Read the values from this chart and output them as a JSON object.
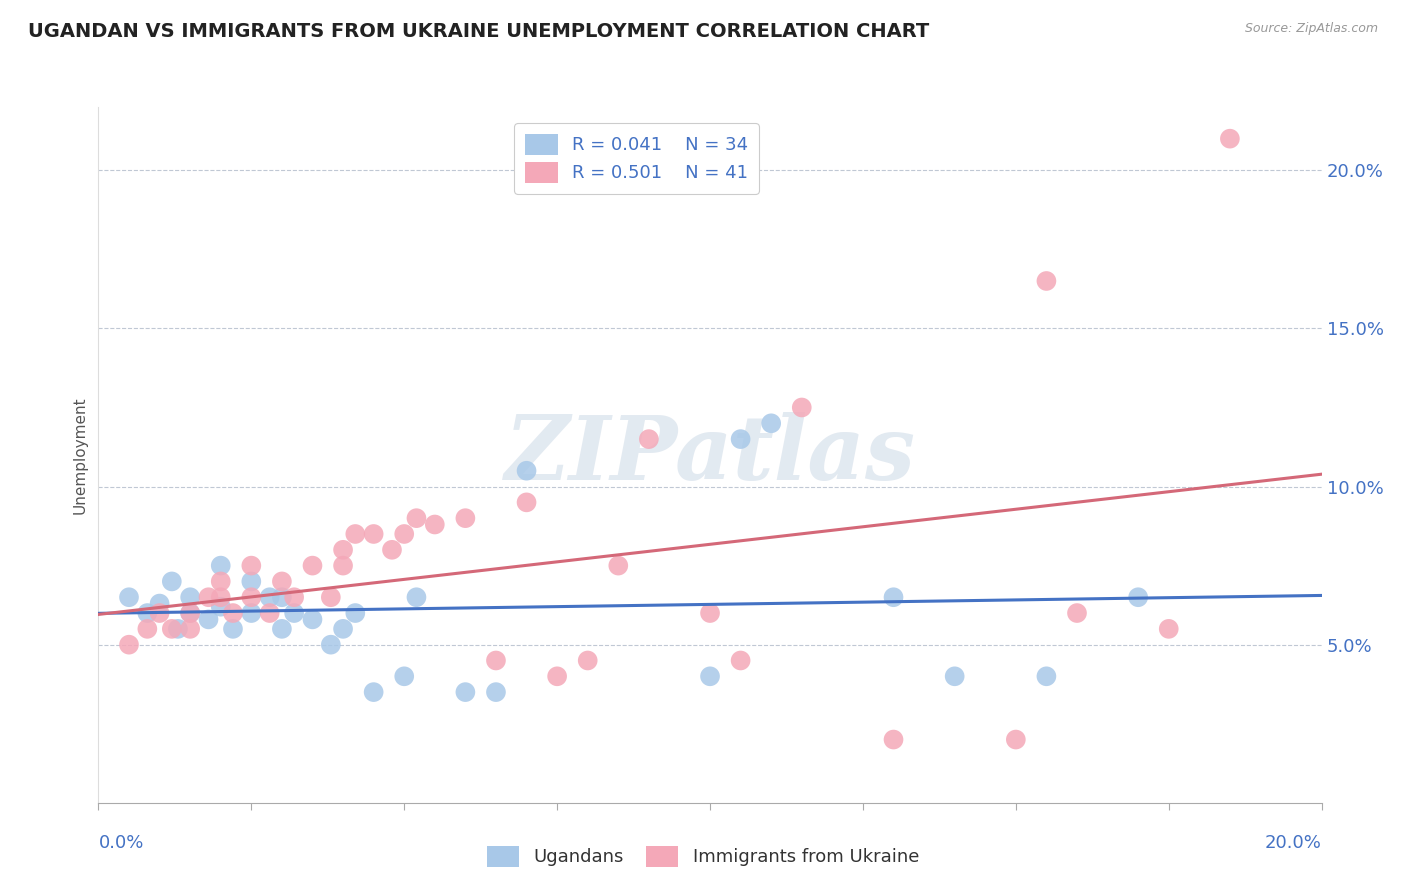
{
  "title": "UGANDAN VS IMMIGRANTS FROM UKRAINE UNEMPLOYMENT CORRELATION CHART",
  "source": "Source: ZipAtlas.com",
  "ylabel": "Unemployment",
  "xlim": [
    0.0,
    0.2
  ],
  "ylim": [
    0.0,
    0.22
  ],
  "yticks": [
    0.05,
    0.1,
    0.15,
    0.2
  ],
  "ytick_labels": [
    "5.0%",
    "10.0%",
    "15.0%",
    "20.0%"
  ],
  "xticks": [
    0.0,
    0.025,
    0.05,
    0.075,
    0.1,
    0.125,
    0.15,
    0.175,
    0.2
  ],
  "legend_R1": "R = 0.041",
  "legend_N1": "N = 34",
  "legend_R2": "R = 0.501",
  "legend_N2": "N = 41",
  "color_ugandan": "#a8c8e8",
  "color_ukraine": "#f4a8b8",
  "color_line_ugandan": "#4472c4",
  "color_line_ukraine": "#d46878",
  "watermark_text": "ZIPatlas",
  "watermark_color": "#d0dce8",
  "background_color": "#ffffff",
  "title_fontsize": 14,
  "tick_fontsize": 13,
  "legend_fontsize": 13,
  "ugandan_x": [
    0.005,
    0.008,
    0.01,
    0.012,
    0.013,
    0.015,
    0.015,
    0.018,
    0.02,
    0.02,
    0.022,
    0.025,
    0.025,
    0.028,
    0.03,
    0.03,
    0.032,
    0.035,
    0.038,
    0.04,
    0.042,
    0.045,
    0.05,
    0.052,
    0.06,
    0.065,
    0.07,
    0.1,
    0.105,
    0.11,
    0.13,
    0.14,
    0.155,
    0.17
  ],
  "ugandan_y": [
    0.065,
    0.06,
    0.063,
    0.07,
    0.055,
    0.06,
    0.065,
    0.058,
    0.075,
    0.062,
    0.055,
    0.07,
    0.06,
    0.065,
    0.065,
    0.055,
    0.06,
    0.058,
    0.05,
    0.055,
    0.06,
    0.035,
    0.04,
    0.065,
    0.035,
    0.035,
    0.105,
    0.04,
    0.115,
    0.12,
    0.065,
    0.04,
    0.04,
    0.065
  ],
  "ukraine_x": [
    0.005,
    0.008,
    0.01,
    0.012,
    0.015,
    0.015,
    0.018,
    0.02,
    0.02,
    0.022,
    0.025,
    0.025,
    0.028,
    0.03,
    0.032,
    0.035,
    0.038,
    0.04,
    0.04,
    0.042,
    0.045,
    0.048,
    0.05,
    0.052,
    0.055,
    0.06,
    0.065,
    0.07,
    0.075,
    0.08,
    0.085,
    0.09,
    0.1,
    0.105,
    0.115,
    0.13,
    0.15,
    0.155,
    0.16,
    0.175,
    0.185
  ],
  "ukraine_y": [
    0.05,
    0.055,
    0.06,
    0.055,
    0.06,
    0.055,
    0.065,
    0.07,
    0.065,
    0.06,
    0.075,
    0.065,
    0.06,
    0.07,
    0.065,
    0.075,
    0.065,
    0.08,
    0.075,
    0.085,
    0.085,
    0.08,
    0.085,
    0.09,
    0.088,
    0.09,
    0.045,
    0.095,
    0.04,
    0.045,
    0.075,
    0.115,
    0.06,
    0.045,
    0.125,
    0.02,
    0.02,
    0.165,
    0.06,
    0.055,
    0.21
  ]
}
